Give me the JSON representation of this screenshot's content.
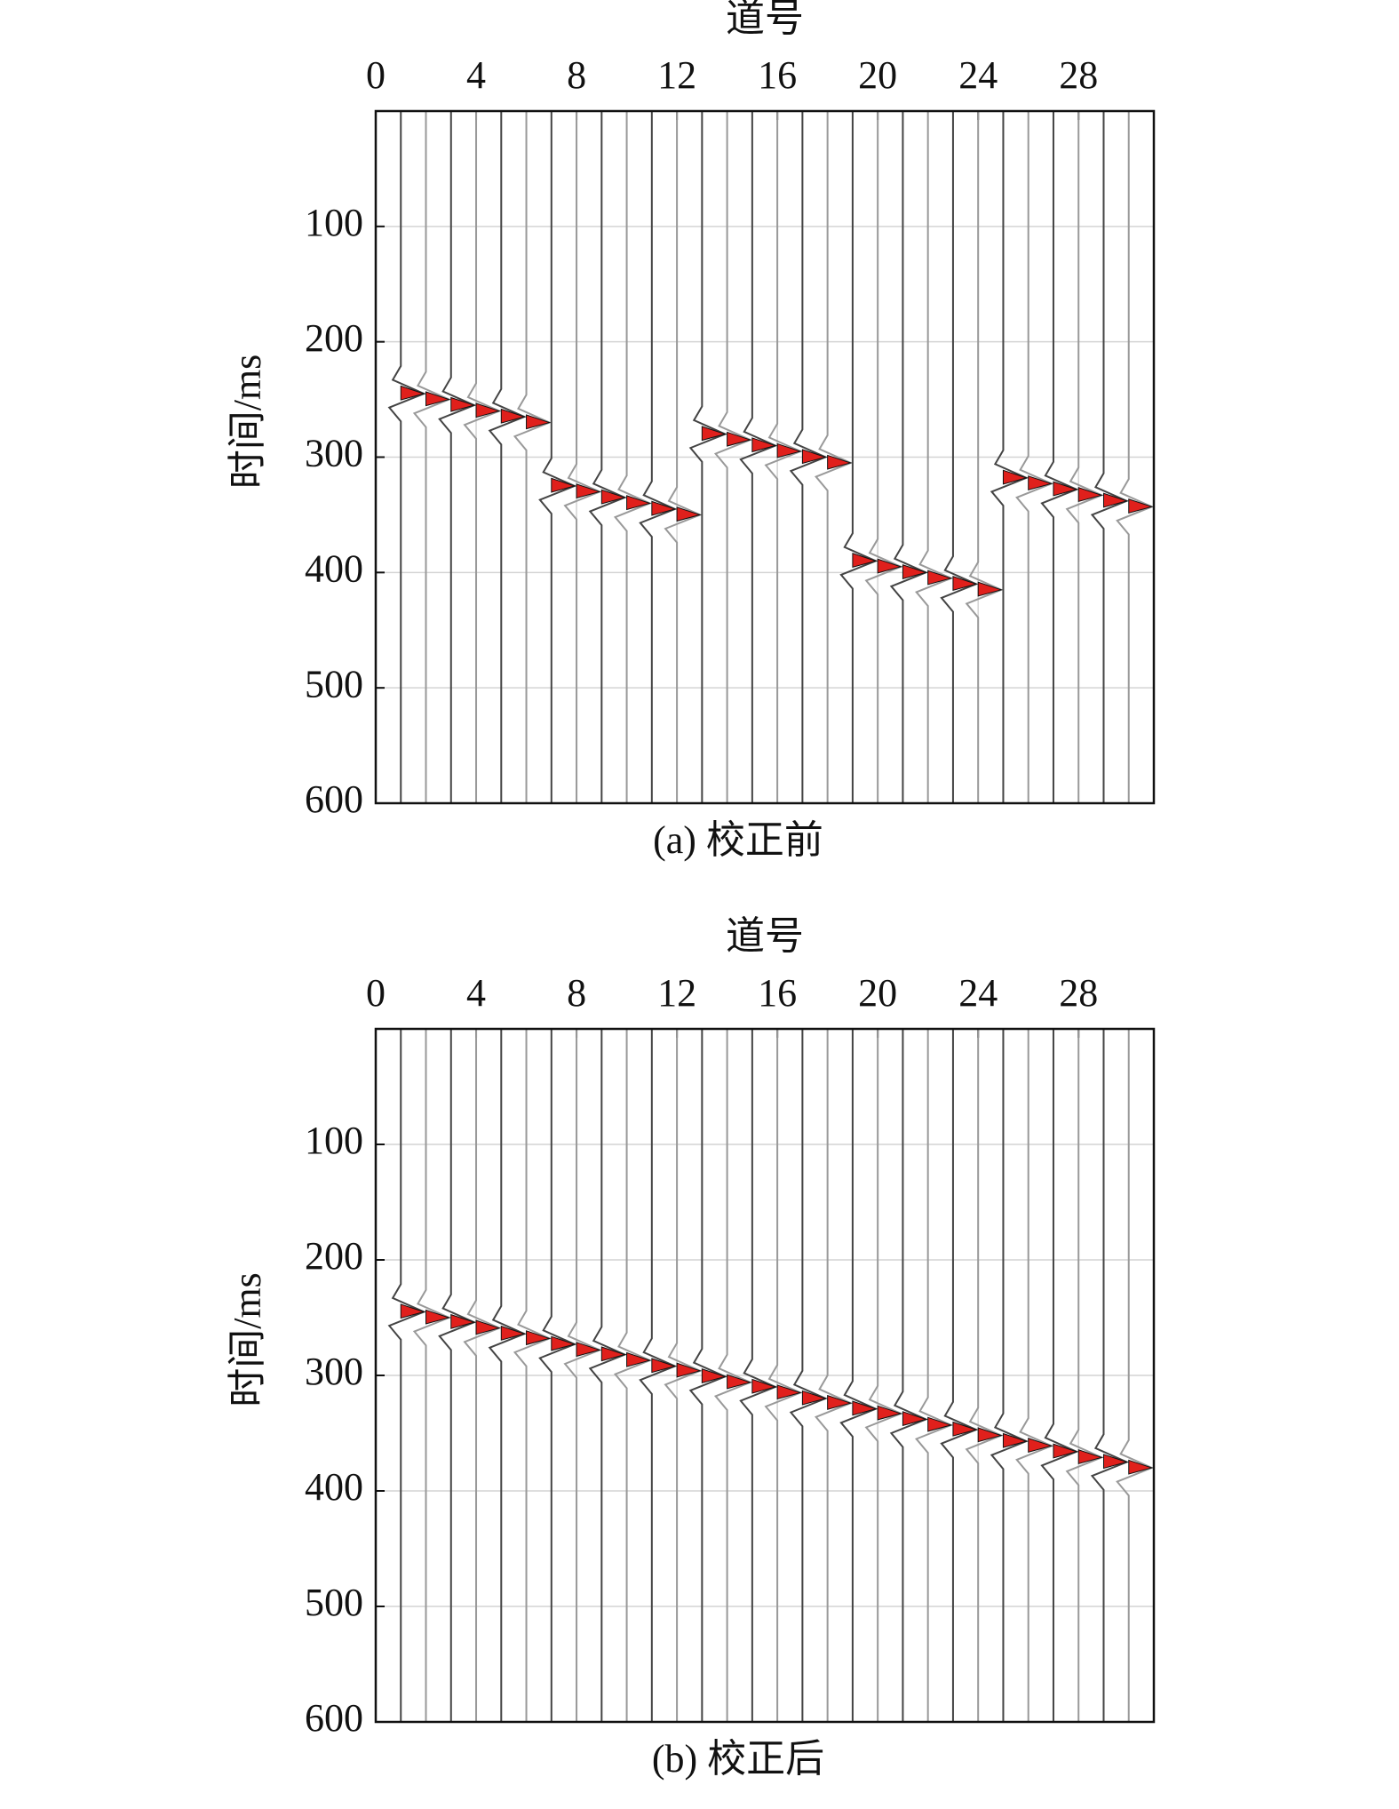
{
  "chart_data": [
    {
      "type": "wiggle",
      "xlabel": "道号",
      "ylabel": "时间/ms",
      "caption": "(a) 校正前",
      "x": [
        1,
        2,
        3,
        4,
        5,
        6,
        7,
        8,
        9,
        10,
        11,
        12,
        13,
        14,
        15,
        16,
        17,
        18,
        19,
        20,
        21,
        22,
        23,
        24,
        25,
        26,
        27,
        28,
        29,
        30
      ],
      "values": [
        245,
        250,
        255,
        260,
        265,
        270,
        325,
        330,
        335,
        340,
        345,
        350,
        280,
        285,
        290,
        295,
        300,
        305,
        390,
        395,
        400,
        405,
        410,
        415,
        318,
        323,
        328,
        333,
        338,
        343
      ],
      "xlim": [
        0,
        31
      ],
      "xticks": [
        0,
        4,
        8,
        12,
        16,
        20,
        24,
        28
      ],
      "ylim": [
        0,
        600
      ],
      "yticks": [
        100,
        200,
        300,
        400,
        500,
        600
      ],
      "grid": true,
      "color": "#e0201c"
    },
    {
      "type": "wiggle",
      "xlabel": "道号",
      "ylabel": "时间/ms",
      "caption": "(b) 校正后",
      "x": [
        1,
        2,
        3,
        4,
        5,
        6,
        7,
        8,
        9,
        10,
        11,
        12,
        13,
        14,
        15,
        16,
        17,
        18,
        19,
        20,
        21,
        22,
        23,
        24,
        25,
        26,
        27,
        28,
        29,
        30
      ],
      "values": [
        245,
        250,
        254,
        259,
        264,
        268,
        273,
        278,
        282,
        287,
        292,
        296,
        301,
        306,
        310,
        315,
        320,
        324,
        329,
        333,
        338,
        343,
        347,
        352,
        357,
        361,
        366,
        371,
        375,
        380
      ],
      "xlim": [
        0,
        31
      ],
      "xticks": [
        0,
        4,
        8,
        12,
        16,
        20,
        24,
        28
      ],
      "ylim": [
        0,
        600
      ],
      "yticks": [
        100,
        200,
        300,
        400,
        500,
        600
      ],
      "grid": true,
      "color": "#e0201c"
    }
  ]
}
